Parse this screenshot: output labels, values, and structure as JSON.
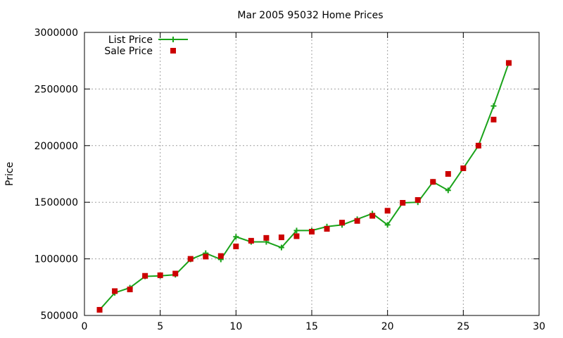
{
  "chart_data": {
    "type": "line",
    "title": "Mar 2005 95032 Home Prices",
    "xlabel": "",
    "ylabel": "Price",
    "xlim": [
      0,
      30
    ],
    "ylim": [
      500000,
      3000000
    ],
    "xticks": [
      0,
      5,
      10,
      15,
      20,
      25,
      30
    ],
    "yticks": [
      500000,
      1000000,
      1500000,
      2000000,
      2500000,
      3000000
    ],
    "grid": true,
    "legend_position": "top-left",
    "series": [
      {
        "name": "List Price",
        "style": "linespoints",
        "marker": "plus",
        "color": "#1aa31a",
        "x": [
          1,
          2,
          3,
          4,
          5,
          6,
          7,
          8,
          9,
          10,
          11,
          12,
          13,
          14,
          15,
          16,
          17,
          18,
          19,
          20,
          21,
          22,
          23,
          24,
          25,
          26,
          27,
          28
        ],
        "values": [
          550000,
          700000,
          745000,
          845000,
          850000,
          860000,
          995000,
          1050000,
          995000,
          1195000,
          1150000,
          1150000,
          1100000,
          1250000,
          1250000,
          1285000,
          1300000,
          1350000,
          1400000,
          1300000,
          1495000,
          1500000,
          1680000,
          1605000,
          1800000,
          2000000,
          2350000,
          2730000
        ]
      },
      {
        "name": "Sale Price",
        "style": "points",
        "marker": "square",
        "color": "#cc0000",
        "x": [
          1,
          2,
          3,
          4,
          5,
          6,
          7,
          8,
          9,
          10,
          11,
          12,
          13,
          14,
          15,
          16,
          17,
          18,
          19,
          20,
          21,
          22,
          23,
          24,
          25,
          26,
          27,
          28
        ],
        "values": [
          550000,
          715000,
          730000,
          850000,
          855000,
          870000,
          1000000,
          1020000,
          1025000,
          1110000,
          1160000,
          1185000,
          1190000,
          1200000,
          1240000,
          1265000,
          1320000,
          1335000,
          1380000,
          1425000,
          1495000,
          1520000,
          1680000,
          1750000,
          1800000,
          2000000,
          2230000,
          2730000
        ]
      }
    ]
  }
}
